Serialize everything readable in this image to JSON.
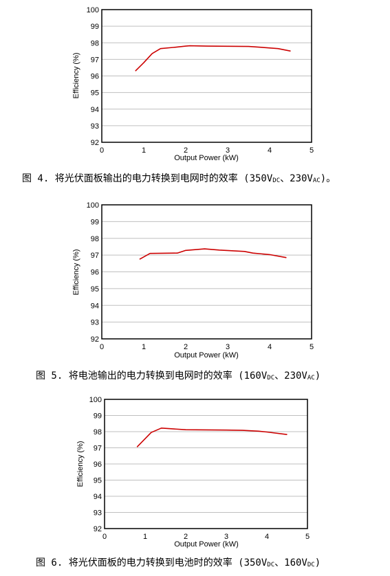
{
  "colors": {
    "series_line": "#cc0000",
    "grid": "#bfbfbf",
    "frame": "#000000"
  },
  "captions": [
    [
      "图 4. 将光伏面板输出的电力转换到电网时的效率 (350V",
      "DC",
      "、230V",
      "AC",
      ")。"
    ],
    [
      "图 5. 将电池输出的电力转换到电网时的效率 (160V",
      "DC",
      "、230V",
      "AC",
      ")"
    ],
    [
      "图 6. 将光伏面板的电力转换到电池时的效率 (350V",
      "DC",
      "、160V",
      "DC",
      ")"
    ]
  ],
  "chart_data": [
    {
      "type": "line",
      "title": "",
      "xlabel": "Output Power (kW)",
      "ylabel": "Efficiency (%)",
      "xlim": [
        0,
        5
      ],
      "ylim": [
        92,
        100
      ],
      "xticks": [
        0,
        1,
        2,
        3,
        4,
        5
      ],
      "yticks": [
        92,
        93,
        94,
        95,
        96,
        97,
        98,
        99,
        100
      ],
      "grid": "horizontal",
      "series": [
        {
          "x": [
            0.8,
            1.0,
            1.2,
            1.4,
            1.7,
            2.0,
            2.1,
            2.5,
            3.0,
            3.5,
            3.8,
            4.2,
            4.5
          ],
          "y": [
            96.3,
            96.8,
            97.35,
            97.65,
            97.72,
            97.8,
            97.82,
            97.8,
            97.79,
            97.78,
            97.73,
            97.65,
            97.5
          ]
        }
      ]
    },
    {
      "type": "line",
      "title": "",
      "xlabel": "Output Power (kW)",
      "ylabel": "Efficiency (%)",
      "xlim": [
        0,
        5
      ],
      "ylim": [
        92,
        100
      ],
      "xticks": [
        0,
        1,
        2,
        3,
        4,
        5
      ],
      "yticks": [
        92,
        93,
        94,
        95,
        96,
        97,
        98,
        99,
        100
      ],
      "grid": "horizontal",
      "series": [
        {
          "x": [
            0.9,
            1.15,
            1.8,
            2.0,
            2.45,
            2.8,
            3.4,
            3.6,
            4.0,
            4.4
          ],
          "y": [
            96.75,
            97.1,
            97.12,
            97.28,
            97.37,
            97.3,
            97.22,
            97.12,
            97.03,
            96.85
          ]
        }
      ]
    },
    {
      "type": "line",
      "title": "",
      "xlabel": "Output Power (kW)",
      "ylabel": "Efficiency (%)",
      "xlim": [
        0,
        5
      ],
      "ylim": [
        92,
        100
      ],
      "xticks": [
        0,
        1,
        2,
        3,
        4,
        5
      ],
      "yticks": [
        92,
        93,
        94,
        95,
        96,
        97,
        98,
        99,
        100
      ],
      "grid": "horizontal",
      "series": [
        {
          "x": [
            0.8,
            1.15,
            1.4,
            2.0,
            3.0,
            3.4,
            3.8,
            4.0,
            4.5
          ],
          "y": [
            97.05,
            97.95,
            98.22,
            98.12,
            98.1,
            98.08,
            98.03,
            97.98,
            97.82
          ]
        }
      ]
    }
  ]
}
